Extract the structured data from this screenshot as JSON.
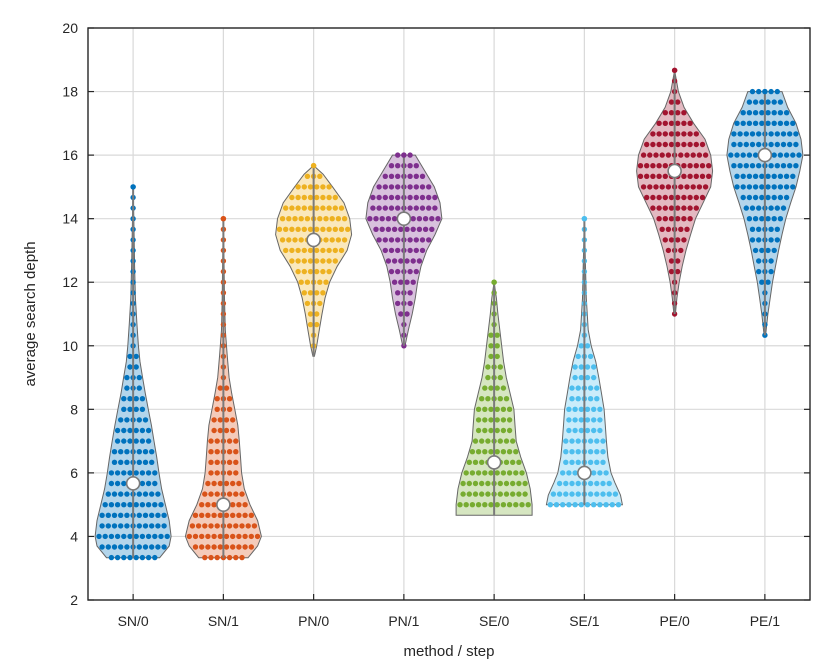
{
  "chart_data": {
    "type": "violin",
    "xlabel": "method / step",
    "ylabel": "average search depth",
    "ylim": [
      2,
      20
    ],
    "yticks": [
      2,
      4,
      6,
      8,
      10,
      12,
      14,
      16,
      18,
      20
    ],
    "categories": [
      "SN/0",
      "SN/1",
      "PN/0",
      "PN/1",
      "SE/0",
      "SE/1",
      "PE/0",
      "PE/1"
    ],
    "grid": true,
    "series": [
      {
        "category": "SN/0",
        "color": "#0072BD",
        "min": 3.33,
        "max": 15,
        "median": 5.67,
        "density": [
          [
            3.33,
            0.7
          ],
          [
            3.7,
            0.95
          ],
          [
            4.0,
            1.0
          ],
          [
            4.5,
            0.95
          ],
          [
            5.0,
            0.85
          ],
          [
            5.5,
            0.75
          ],
          [
            6.0,
            0.68
          ],
          [
            6.5,
            0.62
          ],
          [
            7.0,
            0.55
          ],
          [
            7.5,
            0.48
          ],
          [
            8.0,
            0.4
          ],
          [
            8.5,
            0.32
          ],
          [
            9.0,
            0.25
          ],
          [
            9.5,
            0.18
          ],
          [
            10.0,
            0.14
          ],
          [
            10.7,
            0.1
          ],
          [
            11.5,
            0.06
          ],
          [
            12.5,
            0.04
          ],
          [
            13.5,
            0.025
          ],
          [
            15.0,
            0.0
          ]
        ]
      },
      {
        "category": "SN/1",
        "color": "#D95319",
        "min": 3.33,
        "max": 14,
        "median": 5.0,
        "density": [
          [
            3.33,
            0.65
          ],
          [
            3.7,
            0.9
          ],
          [
            4.0,
            1.0
          ],
          [
            4.5,
            0.9
          ],
          [
            5.0,
            0.7
          ],
          [
            5.5,
            0.55
          ],
          [
            6.0,
            0.48
          ],
          [
            6.5,
            0.45
          ],
          [
            7.0,
            0.42
          ],
          [
            7.5,
            0.38
          ],
          [
            8.0,
            0.3
          ],
          [
            8.5,
            0.22
          ],
          [
            9.0,
            0.15
          ],
          [
            9.7,
            0.1
          ],
          [
            10.5,
            0.05
          ],
          [
            11.5,
            0.03
          ],
          [
            12.5,
            0.02
          ],
          [
            14.0,
            0.0
          ]
        ]
      },
      {
        "category": "PN/0",
        "color": "#EDB120",
        "min": 9.67,
        "max": 15.67,
        "median": 13.33,
        "density": [
          [
            9.67,
            0.02
          ],
          [
            10.0,
            0.08
          ],
          [
            10.5,
            0.15
          ],
          [
            11.0,
            0.22
          ],
          [
            11.5,
            0.3
          ],
          [
            12.0,
            0.42
          ],
          [
            12.5,
            0.62
          ],
          [
            13.0,
            0.88
          ],
          [
            13.5,
            1.0
          ],
          [
            14.0,
            0.95
          ],
          [
            14.5,
            0.8
          ],
          [
            15.0,
            0.5
          ],
          [
            15.4,
            0.25
          ],
          [
            15.67,
            0.0
          ]
        ]
      },
      {
        "category": "PN/1",
        "color": "#7E2F8E",
        "min": 10,
        "max": 16,
        "median": 14.0,
        "density": [
          [
            10.0,
            0.03
          ],
          [
            10.5,
            0.12
          ],
          [
            11.0,
            0.22
          ],
          [
            11.5,
            0.3
          ],
          [
            12.0,
            0.36
          ],
          [
            12.5,
            0.45
          ],
          [
            13.0,
            0.6
          ],
          [
            13.5,
            0.82
          ],
          [
            14.0,
            1.0
          ],
          [
            14.5,
            0.95
          ],
          [
            15.0,
            0.8
          ],
          [
            15.5,
            0.55
          ],
          [
            16.0,
            0.3
          ]
        ]
      },
      {
        "category": "SE/0",
        "color": "#77AC30",
        "min": 4.67,
        "max": 12,
        "median": 6.33,
        "density": [
          [
            4.67,
            1.0
          ],
          [
            5.0,
            1.0
          ],
          [
            5.5,
            0.95
          ],
          [
            6.0,
            0.85
          ],
          [
            6.5,
            0.7
          ],
          [
            7.0,
            0.58
          ],
          [
            7.5,
            0.55
          ],
          [
            8.0,
            0.52
          ],
          [
            8.5,
            0.42
          ],
          [
            9.0,
            0.32
          ],
          [
            9.5,
            0.25
          ],
          [
            10.0,
            0.2
          ],
          [
            10.5,
            0.15
          ],
          [
            11.0,
            0.1
          ],
          [
            11.5,
            0.06
          ],
          [
            12.0,
            0.0
          ]
        ]
      },
      {
        "category": "SE/1",
        "color": "#4DBEEE",
        "min": 5,
        "max": 14,
        "median": 6.0,
        "density": [
          [
            5.0,
            1.0
          ],
          [
            5.3,
            0.95
          ],
          [
            5.7,
            0.8
          ],
          [
            6.0,
            0.7
          ],
          [
            6.5,
            0.62
          ],
          [
            7.0,
            0.58
          ],
          [
            7.5,
            0.55
          ],
          [
            8.0,
            0.52
          ],
          [
            8.5,
            0.45
          ],
          [
            9.0,
            0.38
          ],
          [
            9.5,
            0.3
          ],
          [
            10.0,
            0.18
          ],
          [
            10.5,
            0.1
          ],
          [
            11.5,
            0.05
          ],
          [
            12.5,
            0.03
          ],
          [
            14.0,
            0.0
          ]
        ]
      },
      {
        "category": "PE/0",
        "color": "#A2142F",
        "min": 11,
        "max": 18.67,
        "median": 15.5,
        "density": [
          [
            11.0,
            0.02
          ],
          [
            11.5,
            0.06
          ],
          [
            12.0,
            0.12
          ],
          [
            12.5,
            0.2
          ],
          [
            13.0,
            0.3
          ],
          [
            13.5,
            0.42
          ],
          [
            14.0,
            0.55
          ],
          [
            14.5,
            0.75
          ],
          [
            15.0,
            0.95
          ],
          [
            15.5,
            1.0
          ],
          [
            16.0,
            0.95
          ],
          [
            16.5,
            0.8
          ],
          [
            17.0,
            0.5
          ],
          [
            17.5,
            0.25
          ],
          [
            18.0,
            0.1
          ],
          [
            18.67,
            0.0
          ]
        ]
      },
      {
        "category": "PE/1",
        "color": "#0072BD",
        "min": 10.33,
        "max": 18,
        "median": 16.0,
        "density": [
          [
            10.33,
            0.02
          ],
          [
            11.0,
            0.08
          ],
          [
            11.5,
            0.14
          ],
          [
            12.0,
            0.2
          ],
          [
            12.5,
            0.28
          ],
          [
            13.0,
            0.36
          ],
          [
            13.5,
            0.45
          ],
          [
            14.0,
            0.55
          ],
          [
            14.5,
            0.68
          ],
          [
            15.0,
            0.82
          ],
          [
            15.5,
            0.92
          ],
          [
            16.0,
            1.0
          ],
          [
            16.5,
            0.95
          ],
          [
            17.0,
            0.82
          ],
          [
            17.5,
            0.6
          ],
          [
            18.0,
            0.45
          ]
        ]
      }
    ]
  }
}
